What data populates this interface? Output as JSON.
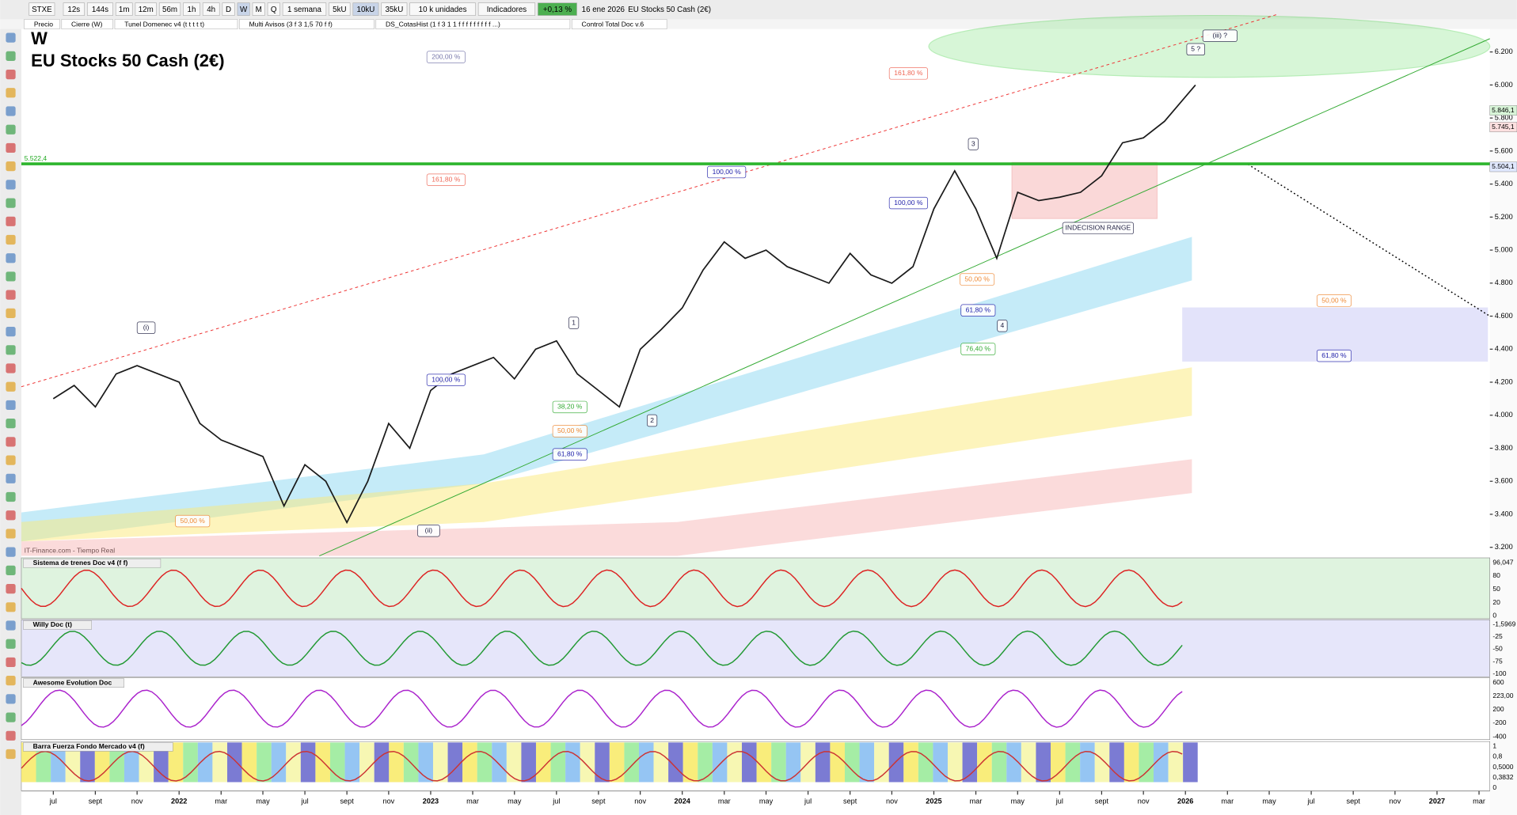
{
  "toolbar": {
    "symbol": "STXE",
    "intervals": [
      "12s",
      "144s",
      "1m",
      "12m",
      "56m",
      "1h",
      "4h",
      "D",
      "W",
      "M",
      "Q"
    ],
    "period": "1 semana",
    "units": [
      "5kU",
      "10kU",
      "35kU"
    ],
    "units_select": "10 k unidades",
    "indicators": "Indicadores",
    "change": "+0,13 %",
    "date": "16 ene 2026",
    "instrument": "EU Stocks 50 Cash (2€)"
  },
  "studies": [
    "Precio",
    "Cierre (W)",
    "Tunel Domenec v4 (t t t t t)",
    "Multi Avisos (3 f 3 1,5 70 f f)",
    "DS_CotasHist (1 f 3 1 1 f f f f f f f f f ...)",
    "Control Total Doc v.6"
  ],
  "chart_data": {
    "type": "line",
    "title": "W",
    "subtitle": "EU Stocks 50 Cash (2€)",
    "source": "IT-Finance.com - Tiempo Real",
    "color": "#1a1a1a",
    "x": [
      2021.5,
      2021.583,
      2021.667,
      2021.75,
      2021.833,
      2021.917,
      2022.0,
      2022.083,
      2022.167,
      2022.25,
      2022.333,
      2022.417,
      2022.5,
      2022.583,
      2022.667,
      2022.75,
      2022.833,
      2022.917,
      2023.0,
      2023.083,
      2023.167,
      2023.25,
      2023.333,
      2023.417,
      2023.5,
      2023.583,
      2023.667,
      2023.75,
      2023.833,
      2023.917,
      2024.0,
      2024.083,
      2024.167,
      2024.25,
      2024.333,
      2024.417,
      2024.5,
      2024.583,
      2024.667,
      2024.75,
      2024.833,
      2024.917,
      2025.0,
      2025.083,
      2025.167,
      2025.25,
      2025.333,
      2025.417,
      2025.5,
      2025.583,
      2025.667,
      2025.75,
      2025.833,
      2025.917,
      2026.04
    ],
    "values": [
      4100,
      4180,
      4050,
      4250,
      4300,
      4250,
      4200,
      3950,
      3850,
      3800,
      3750,
      3450,
      3700,
      3600,
      3350,
      3600,
      3950,
      3800,
      4150,
      4250,
      4300,
      4350,
      4220,
      4400,
      4450,
      4250,
      4150,
      4050,
      4400,
      4520,
      4650,
      4880,
      5050,
      4950,
      5000,
      4900,
      4850,
      4800,
      4980,
      4850,
      4800,
      4900,
      5250,
      5480,
      5250,
      4950,
      5350,
      5300,
      5320,
      5350,
      5450,
      5650,
      5680,
      5780,
      6000
    ],
    "xlim": [
      2021.373,
      2027.21
    ],
    "xticks": [
      {
        "value": 2021.5,
        "label": "jul"
      },
      {
        "value": 2021.667,
        "label": "sept"
      },
      {
        "value": 2021.833,
        "label": "nov"
      },
      {
        "value": 2022,
        "label": "2022"
      },
      {
        "value": 2022.167,
        "label": "mar"
      },
      {
        "value": 2022.333,
        "label": "may"
      },
      {
        "value": 2022.5,
        "label": "jul"
      },
      {
        "value": 2022.667,
        "label": "sept"
      },
      {
        "value": 2022.833,
        "label": "nov"
      },
      {
        "value": 2023,
        "label": "2023"
      },
      {
        "value": 2023.167,
        "label": "mar"
      },
      {
        "value": 2023.333,
        "label": "may"
      },
      {
        "value": 2023.5,
        "label": "jul"
      },
      {
        "value": 2023.667,
        "label": "sept"
      },
      {
        "value": 2023.833,
        "label": "nov"
      },
      {
        "value": 2024,
        "label": "2024"
      },
      {
        "value": 2024.167,
        "label": "mar"
      },
      {
        "value": 2024.333,
        "label": "may"
      },
      {
        "value": 2024.5,
        "label": "jul"
      },
      {
        "value": 2024.667,
        "label": "sept"
      },
      {
        "value": 2024.833,
        "label": "nov"
      },
      {
        "value": 2025,
        "label": "2025"
      },
      {
        "value": 2025.167,
        "label": "mar"
      },
      {
        "value": 2025.333,
        "label": "may"
      },
      {
        "value": 2025.5,
        "label": "jul"
      },
      {
        "value": 2025.667,
        "label": "sept"
      },
      {
        "value": 2025.833,
        "label": "nov"
      },
      {
        "value": 2026,
        "label": "2026"
      },
      {
        "value": 2026.167,
        "label": "mar"
      },
      {
        "value": 2026.333,
        "label": "may"
      },
      {
        "value": 2026.5,
        "label": "jul"
      },
      {
        "value": 2026.667,
        "label": "sept"
      },
      {
        "value": 2026.833,
        "label": "nov"
      },
      {
        "value": 2027,
        "label": "2027"
      },
      {
        "value": 2027.167,
        "label": "mar"
      }
    ],
    "ylim": [
      3148,
      6339
    ],
    "yticks": [
      {
        "value": 3200,
        "label": "3.200"
      },
      {
        "value": 3400,
        "label": "3.400"
      },
      {
        "value": 3600,
        "label": "3.600"
      },
      {
        "value": 3800,
        "label": "3.800"
      },
      {
        "value": 4000,
        "label": "4.000"
      },
      {
        "value": 4200,
        "label": "4.200"
      },
      {
        "value": 4400,
        "label": "4.400"
      },
      {
        "value": 4600,
        "label": "4.600"
      },
      {
        "value": 4800,
        "label": "4.800"
      },
      {
        "value": 5000,
        "label": "5.000"
      },
      {
        "value": 5200,
        "label": "5.200"
      },
      {
        "value": 5400,
        "label": "5.400"
      },
      {
        "value": 5600,
        "label": "5.600"
      },
      {
        "value": 5800,
        "label": "5.800"
      },
      {
        "value": 6000,
        "label": "6.000"
      },
      {
        "value": 6200,
        "label": "6.200"
      }
    ],
    "levels": [
      {
        "value": 5522.4,
        "label": "5.522,4"
      }
    ],
    "price_markers": [
      {
        "value": 5846.1,
        "label": "5.846,1"
      },
      {
        "value": 5745.1,
        "label": "5.745,1"
      },
      {
        "value": 5504.1,
        "label": "5.504,1"
      }
    ],
    "annotations": [
      "200,00 %",
      "161,80 %",
      "161,80 %",
      "100,00 %",
      "100,00 %",
      "100,00 %",
      "50,00 %",
      "61,80 %",
      "76,40 %",
      "50,00 %",
      "61,80 %",
      "38,20 %",
      "50,00 %",
      "61,80 %",
      "50,00 %",
      "(i)",
      "(ii)",
      "(iii) ?",
      "5 ?",
      "1",
      "2",
      "3",
      "4",
      "INDECISION RANGE"
    ]
  },
  "panels": [
    {
      "name": "Sistema de trenes Doc v4 (f f)",
      "labels": [
        "96,047",
        "80",
        "50",
        "20",
        "0"
      ]
    },
    {
      "name": "Willy Doc (t)",
      "labels": [
        "-1,5969",
        "-25",
        "-50",
        "-75",
        "-100"
      ]
    },
    {
      "name": "Awesome Evolution Doc",
      "labels": [
        "600",
        "223,00",
        "200",
        "-200",
        "-400"
      ]
    },
    {
      "name": "Barra Fuerza Fondo Mercado v4 (f)",
      "labels": [
        "1",
        "0,8",
        "0,5000",
        "0,3832",
        "0"
      ]
    }
  ]
}
